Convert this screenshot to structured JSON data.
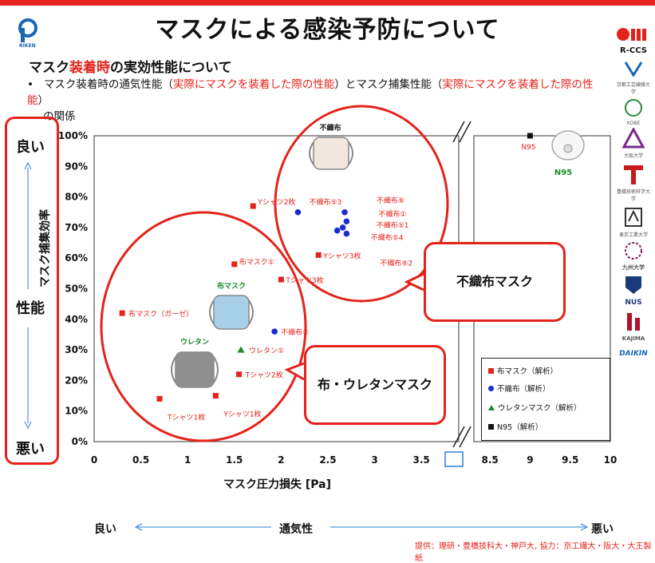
{
  "header": {
    "title": "マスクによる感染予防について",
    "subtitle_pre": "マスク",
    "subtitle_red": "装着時",
    "subtitle_post": "の実効性能について",
    "bullet_mark": "•",
    "bullet_1": "マスク装着時の通気性能（",
    "bullet_red_1": "実際にマスクを装着した際の性能",
    "bullet_2": "）とマスク捕集性能（",
    "bullet_red_2": "実際にマスクを装着した際の性能",
    "bullet_3": "）",
    "bullet_4": "の関係"
  },
  "logos": {
    "riken": "RIKEN",
    "rccs": "R-CCS",
    "kit_text": "京都工芸繊維大学",
    "kobe": "KOBE",
    "osaka": "大阪大学",
    "toyohashi": "豊橋技術科学大学",
    "tokyo_tech": "東京工業大学",
    "kyushu": "九州大学",
    "nus": "NUS",
    "kajima": "KAJIMA",
    "daikin": "DAIKIN"
  },
  "performance_axis": {
    "good": "良い",
    "middle": "性能",
    "bad": "悪い"
  },
  "breathability_axis": {
    "good": "良い",
    "middle": "通気性",
    "bad": "悪い"
  },
  "callouts": {
    "nonwoven": "不織布マスク",
    "cloth_urethane": "布・ウレタンマスク"
  },
  "image_labels": {
    "nonwoven_mask": "不織布",
    "cloth_mask": "布マスク",
    "urethane_mask": "ウレタン",
    "n95_mask": "N95"
  },
  "credit": "提供：理研・豊橋技科大・神戸大, 協力：京工繊大・阪大・大王製紙",
  "colors": {
    "red": "#e3231b",
    "blue": "#1a2ccf",
    "green": "#1a8a2a",
    "black": "#111111",
    "accent_blue": "#2b7fd8"
  },
  "chart_data": {
    "type": "scatter",
    "xlabel": "マスク圧力損失 [Pa]",
    "ylabel": "マスク捕集効率",
    "x_ticks_left": [
      "0",
      "0.5",
      "1",
      "1.5",
      "2",
      "2.5",
      "3",
      "3.5"
    ],
    "x_ticks_right": [
      "8.5",
      "9",
      "9.5",
      "10"
    ],
    "y_ticks": [
      "0%",
      "10%",
      "20%",
      "30%",
      "40%",
      "50%",
      "60%",
      "70%",
      "80%",
      "90%",
      "100%"
    ],
    "xlim_left": [
      0,
      3.9
    ],
    "xlim_right": [
      8.3,
      10
    ],
    "ylim": [
      0,
      100
    ],
    "axis_break": true,
    "legend_position": "bottom-right",
    "legend": [
      {
        "label": "布マスク（解析）",
        "marker": "square",
        "color": "#e3231b"
      },
      {
        "label": "不織布（解析）",
        "marker": "circle",
        "color": "#1a2ccf"
      },
      {
        "label": "ウレタンマスク（解析）",
        "marker": "triangle",
        "color": "#1a8a2a"
      },
      {
        "label": "N95（解析）",
        "marker": "square",
        "color": "#111111"
      }
    ],
    "series": [
      {
        "name": "布マスク（解析）",
        "marker": "square",
        "color": "#e3231b",
        "points": [
          {
            "x": 1.7,
            "y": 77,
            "label": "Yシャツ2枚"
          },
          {
            "x": 2.4,
            "y": 61,
            "label": "Yシャツ3枚"
          },
          {
            "x": 1.5,
            "y": 58,
            "label": "布マスク①"
          },
          {
            "x": 2.0,
            "y": 53,
            "label": "Tシャツ3枚"
          },
          {
            "x": 0.3,
            "y": 42,
            "label": "布マスク（ガーゼ）"
          },
          {
            "x": 1.55,
            "y": 22,
            "label": "Tシャツ2枚"
          },
          {
            "x": 0.7,
            "y": 14,
            "label": "Tシャツ1枚"
          },
          {
            "x": 1.3,
            "y": 15,
            "label": "Yシャツ1枚"
          }
        ]
      },
      {
        "name": "不織布（解析）",
        "marker": "circle",
        "color": "#1a2ccf",
        "points": [
          {
            "x": 2.18,
            "y": 75,
            "label": "不織布⑤3"
          },
          {
            "x": 2.68,
            "y": 75,
            "label": "不織布⑥"
          },
          {
            "x": 2.7,
            "y": 72,
            "label": "不織布①"
          },
          {
            "x": 2.66,
            "y": 70,
            "label": "不織布⑤1"
          },
          {
            "x": 2.6,
            "y": 69,
            "label": "不織布⑤4"
          },
          {
            "x": 2.7,
            "y": 68,
            "label": "不織布⑥2"
          },
          {
            "x": 1.93,
            "y": 36,
            "label": "不織布②"
          }
        ]
      },
      {
        "name": "ウレタンマスク（解析）",
        "marker": "triangle",
        "color": "#1a8a2a",
        "points": [
          {
            "x": 1.57,
            "y": 30,
            "label": "ウレタン①"
          }
        ]
      },
      {
        "name": "N95（解析）",
        "marker": "square",
        "color": "#111111",
        "points": [
          {
            "x": 9.0,
            "y": 100,
            "label": "N95"
          }
        ]
      }
    ]
  }
}
